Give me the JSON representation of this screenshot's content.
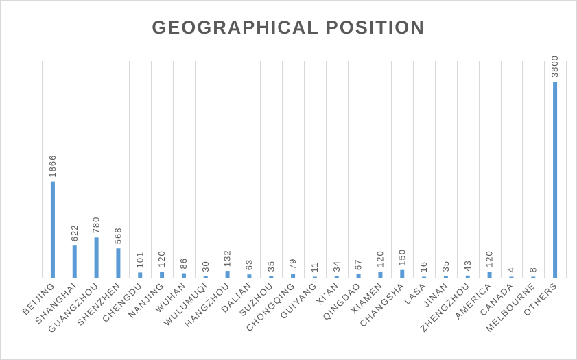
{
  "chart_data": {
    "type": "bar",
    "title": "GEOGRAPHICAL POSITION",
    "xlabel": "",
    "ylabel": "",
    "ylim": [
      0,
      4200
    ],
    "grid": "vertical",
    "legend": "none",
    "categories": [
      "BEIJING",
      "SHANGHAI",
      "GUANGZHOU",
      "SHENZHEN",
      "CHENGDU",
      "NANJING",
      "WUHAN",
      "WULUMUQI",
      "HANGZHOU",
      "DALIAN",
      "SUZHOU",
      "CHONGQING",
      "GUIYANG",
      "XI'AN",
      "QINGDAO",
      "XIAMEN",
      "CHANGSHA",
      "LASA",
      "JINAN",
      "ZHENGZHOU",
      "AMERICA",
      "CANADA",
      "MELBOURNE",
      "OTHERS"
    ],
    "values": [
      1866,
      622,
      780,
      568,
      101,
      120,
      86,
      30,
      132,
      63,
      35,
      79,
      11,
      34,
      67,
      120,
      150,
      16,
      35,
      43,
      120,
      4,
      8,
      3800
    ],
    "bar_color": "#5b9bd5"
  }
}
